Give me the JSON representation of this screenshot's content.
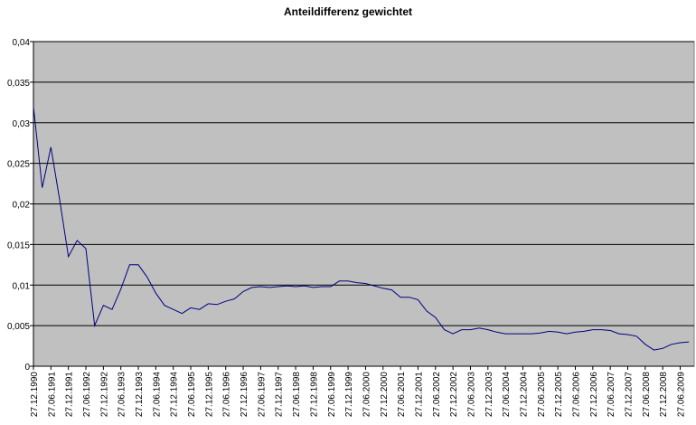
{
  "chart_data": {
    "type": "line",
    "title": "Anteildifferenz gewichtet",
    "categories": [
      "27.12.1990",
      null,
      "27.06.1991",
      null,
      "27.12.1991",
      null,
      "27.06.1992",
      null,
      "27.12.1992",
      null,
      "27.06.1993",
      null,
      "27.12.1993",
      null,
      "27.06.1994",
      null,
      "27.12.1994",
      null,
      "27.06.1995",
      null,
      "27.12.1995",
      null,
      "27.06.1996",
      null,
      "27.12.1996",
      null,
      "27.06.1997",
      null,
      "27.12.1997",
      null,
      "27.06.1998",
      null,
      "27.12.1998",
      null,
      "27.06.1999",
      null,
      "27.12.1999",
      null,
      "27.06.2000",
      null,
      "27.12.2000",
      null,
      "27.06.2001",
      null,
      "27.12.2001",
      null,
      "27.06.2002",
      null,
      "27.12.2002",
      null,
      "27.06.2003",
      null,
      "27.12.2003",
      null,
      "27.06.2004",
      null,
      "27.12.2004",
      null,
      "27.06.2005",
      null,
      "27.12.2005",
      null,
      "27.06.2006",
      null,
      "27.12.2006",
      null,
      "27.06.2007",
      null,
      "27.12.2007",
      null,
      "27.06.2008",
      null,
      "27.12.2008",
      null,
      "27.06.2009",
      null
    ],
    "series": [
      {
        "color": "#000080",
        "values": [
          0.032,
          0.022,
          0.027,
          0.0205,
          0.0135,
          0.0155,
          0.0145,
          0.005,
          0.0075,
          0.007,
          0.0095,
          0.0125,
          0.0125,
          0.011,
          0.009,
          0.0075,
          0.007,
          0.0065,
          0.0072,
          0.007,
          0.0077,
          0.0076,
          0.008,
          0.0083,
          0.0092,
          0.0097,
          0.0098,
          0.0097,
          0.0098,
          0.0099,
          0.0098,
          0.0099,
          0.0097,
          0.0098,
          0.0098,
          0.0105,
          0.0105,
          0.0103,
          0.0102,
          0.0099,
          0.0096,
          0.0094,
          0.0085,
          0.0085,
          0.0082,
          0.0068,
          0.006,
          0.0045,
          0.004,
          0.0045,
          0.0045,
          0.0047,
          0.0045,
          0.0042,
          0.004,
          0.004,
          0.004,
          0.004,
          0.0041,
          0.0043,
          0.0042,
          0.004,
          0.0042,
          0.0043,
          0.0045,
          0.0045,
          0.0044,
          0.004,
          0.0039,
          0.0037,
          0.0027,
          0.002,
          0.0022,
          0.0027,
          0.0029,
          0.003
        ]
      }
    ],
    "ylim": [
      0,
      0.04
    ],
    "yticks": [
      0,
      {
        "value": 0.005,
        "label": "0,005"
      },
      {
        "value": 0.01,
        "label": "0,01"
      },
      {
        "value": 0.015,
        "label": "0,015"
      },
      {
        "value": 0.02,
        "label": "0,02"
      },
      {
        "value": 0.025,
        "label": "0,025"
      },
      {
        "value": 0.03,
        "label": "0,03"
      },
      {
        "value": 0.035,
        "label": "0,035"
      },
      {
        "value": 0.04,
        "label": "0,04"
      }
    ],
    "grid": true
  }
}
